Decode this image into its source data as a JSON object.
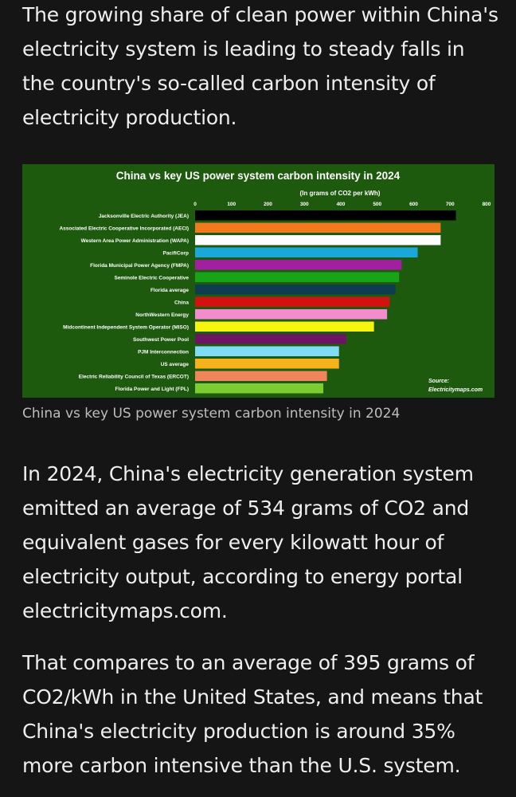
{
  "article": {
    "intro": "The growing share of clean power within China's electricity system is leading to steady falls in the country's so-called carbon intensity of electricity production.",
    "caption": "China vs key US power system carbon intensity in 2024",
    "paragraph1": "In 2024, China's electricity generation system emitted an average of 534 grams of CO2 and equivalent gases for every kilowatt hour of electricity output, according to energy portal electricitymaps.com.",
    "paragraph2": "That compares to an average of 395 grams of CO2/kWh in the United States, and means that China's electricity production is around 35% more carbon intensive than the U.S. system."
  },
  "colors": {
    "page_background": "#151515",
    "chart_background": "#1e5a0e"
  },
  "chart_data": {
    "type": "bar",
    "orientation": "horizontal",
    "title": "China vs key US power system carbon intensity in 2024",
    "subtitle": "(In grams of CO2 per kWh)",
    "source_label": "Source:",
    "source": "Electricitymaps.com",
    "xlim": [
      0,
      800
    ],
    "xticks": [
      "0",
      "100",
      "200",
      "300",
      "400",
      "500",
      "600",
      "700",
      "800"
    ],
    "grid": false,
    "legend": "none",
    "categories": [
      "Jacksonville Electric Authority (JEA)",
      "Associated Electric Cooperative Incorporated (AECI)",
      "Western Area Power Administration (WAPA)",
      "PacifiCorp",
      "Florida Municipal Power Agency (FMPA)",
      "Seminole Electric Cooperative",
      "Florida average",
      "China",
      "NorthWestern Energy",
      "Midcontinent Independent System Operator (MISO)",
      "Southwest Power Pool",
      "PJM Interconnection",
      "US average",
      "Electric Reliability Council of Texas (ERCOT)",
      "Florida Power and Light (FPL)"
    ],
    "values": [
      716,
      674,
      674,
      611,
      567,
      560,
      550,
      534,
      527,
      491,
      415,
      395,
      395,
      362,
      352
    ],
    "bar_colors": [
      "#000000",
      "#f07a1e",
      "#ffffff",
      "#1aa7dc",
      "#a020a0",
      "#19a319",
      "#0e3d4f",
      "#d41111",
      "#f28ccd",
      "#f5f50e",
      "#6e1464",
      "#80dcf5",
      "#f5b21a",
      "#f0845a",
      "#7ccc32"
    ]
  }
}
